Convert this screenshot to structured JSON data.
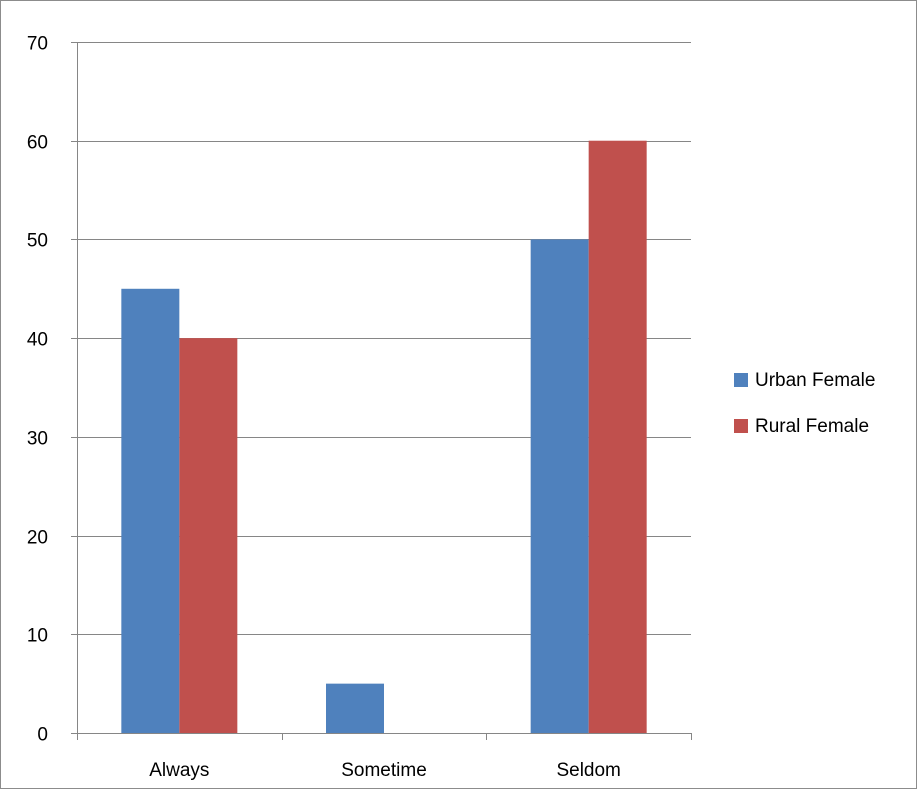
{
  "chart_data": {
    "type": "bar",
    "title": "",
    "xlabel": "",
    "ylabel": "",
    "categories": [
      "Always",
      "Sometime",
      "Seldom"
    ],
    "series": [
      {
        "name": "Urban Female",
        "values": [
          45,
          5,
          50
        ],
        "color": "#4f81bd"
      },
      {
        "name": "Rural Female",
        "values": [
          40,
          0,
          60
        ],
        "color": "#c0504d"
      }
    ],
    "ylim": [
      0,
      70
    ],
    "yticks": [
      0,
      10,
      20,
      30,
      40,
      50,
      60,
      70
    ],
    "grid": true,
    "legend_position": "right"
  }
}
